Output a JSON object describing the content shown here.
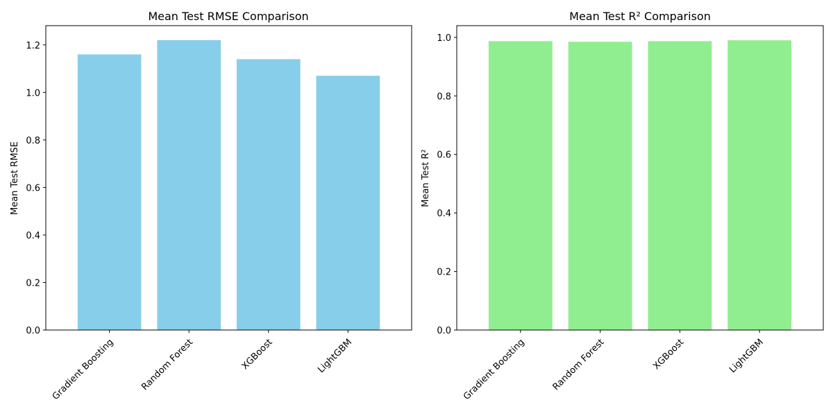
{
  "chart_data": [
    {
      "type": "bar",
      "title": "Mean Test RMSE Comparison",
      "xlabel": "",
      "ylabel": "Mean Test RMSE",
      "categories": [
        "Gradient Boosting",
        "Random Forest",
        "XGBoost",
        "LightGBM"
      ],
      "values": [
        1.16,
        1.22,
        1.14,
        1.07
      ],
      "ylim": [
        0,
        1.281
      ],
      "yticks": [
        "0.0",
        "0.2",
        "0.4",
        "0.6",
        "0.8",
        "1.0",
        "1.2"
      ],
      "color": "#87ceeb",
      "grid": false,
      "legend": "none"
    },
    {
      "type": "bar",
      "title": "Mean Test R² Comparison",
      "xlabel": "",
      "ylabel": "Mean Test R²",
      "categories": [
        "Gradient Boosting",
        "Random Forest",
        "XGBoost",
        "LightGBM"
      ],
      "values": [
        0.987,
        0.985,
        0.987,
        0.99
      ],
      "ylim": [
        0,
        1.04
      ],
      "yticks": [
        "0.0",
        "0.2",
        "0.4",
        "0.6",
        "0.8",
        "1.0"
      ],
      "color": "#90ee90",
      "grid": false,
      "legend": "none"
    }
  ]
}
